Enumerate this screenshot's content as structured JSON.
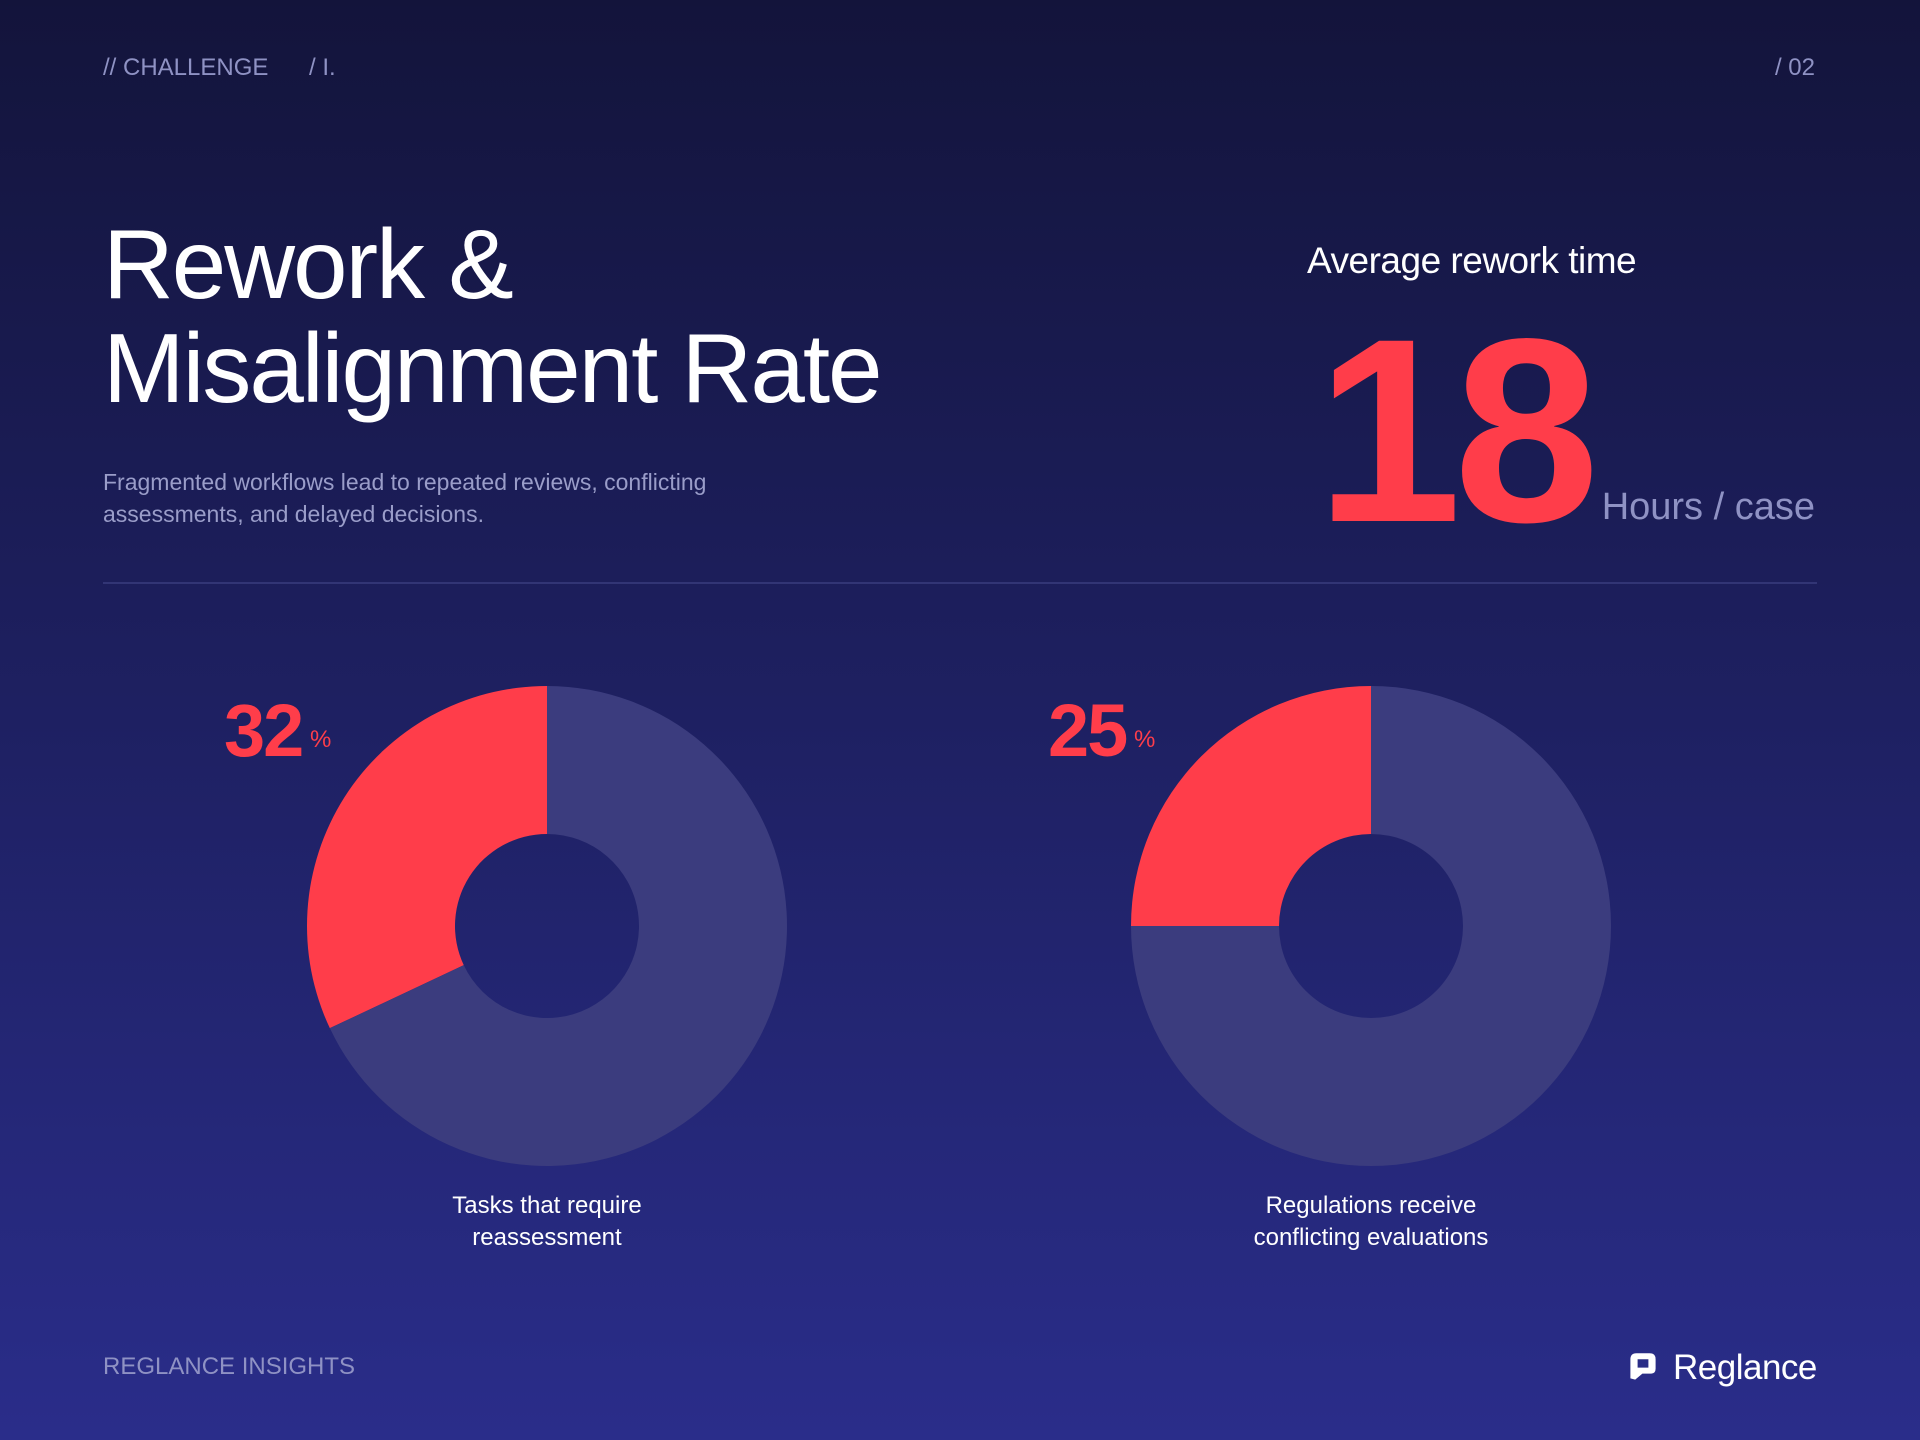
{
  "header": {
    "section": "// CHALLENGE",
    "number": "/ I.",
    "page": "/ 02"
  },
  "title": "Rework & Misalignment Rate",
  "subtitle": "Fragmented workflows lead to repeated reviews, conflicting assessments, and delayed decisions.",
  "metric": {
    "label": "Average rework time",
    "value": 18,
    "unit": "Hours / case"
  },
  "chart_data": [
    {
      "type": "donut",
      "unit": "%",
      "caption": "Tasks that require reassessment",
      "series": [
        {
          "color": "#ff3d4a",
          "values": [
            32,
            68
          ],
          "colors": [
            "#ff3d4a",
            "#3b3c7e"
          ]
        }
      ]
    },
    {
      "type": "donut",
      "unit": "%",
      "caption": "Regulations receive conflicting evaluations",
      "series": [
        {
          "color": "#ff3d4a",
          "values": [
            25,
            75
          ],
          "colors": [
            "#ff3d4a",
            "#3b3c7e"
          ]
        }
      ]
    }
  ],
  "footer": {
    "left": "REGLANCE INSIGHTS",
    "brand": "Reglance"
  }
}
